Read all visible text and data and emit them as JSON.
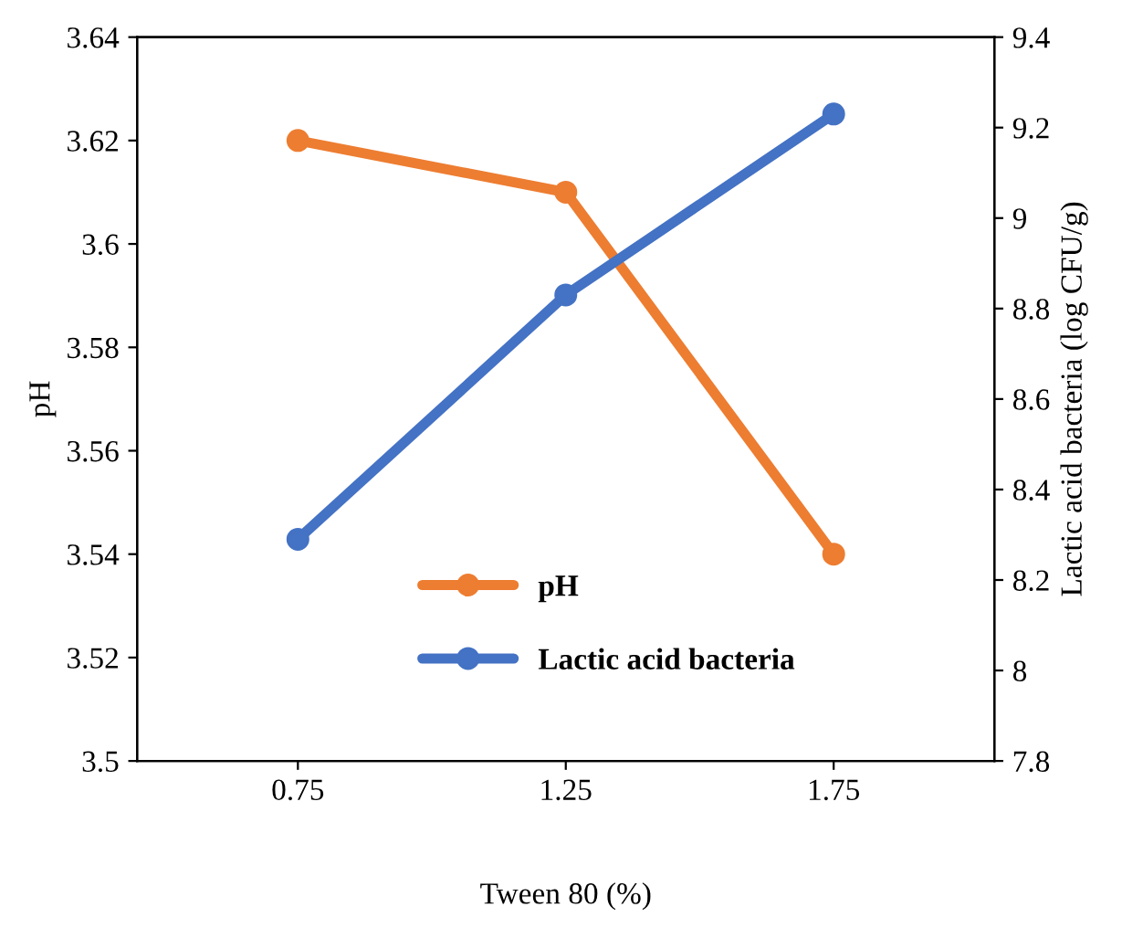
{
  "chart_data": {
    "type": "line",
    "xlabel": "Tween 80 (%)",
    "ylabel": "pH",
    "y2label": "Lactic acid bacteria (log CFU/g)",
    "categories": [
      "0.75",
      "1.25",
      "1.75"
    ],
    "series": [
      {
        "name": "pH",
        "color": "#ed7d31",
        "values": [
          3.62,
          3.61,
          3.54
        ]
      },
      {
        "name": "Lactic acid bacteria",
        "color": "#4472c4",
        "values": [
          8.29,
          8.83,
          9.23
        ],
        "axis": "y2"
      }
    ],
    "ylim": [
      3.5,
      3.64
    ],
    "yticks": [
      {
        "value": 3.5,
        "label": "3.5"
      },
      3.52,
      3.54,
      3.56,
      3.58,
      {
        "value": 3.6,
        "label": "3.6"
      },
      3.62,
      3.64
    ],
    "y2lim": [
      7.8,
      9.4
    ],
    "y2ticks": [
      7.8,
      {
        "value": 8,
        "label": "8"
      },
      8.2,
      8.4,
      8.6,
      8.8,
      {
        "value": 9,
        "label": "9"
      },
      9.2,
      9.4
    ],
    "grid": false,
    "legend": "bottom",
    "marker": "circle",
    "line_style": "solid"
  }
}
